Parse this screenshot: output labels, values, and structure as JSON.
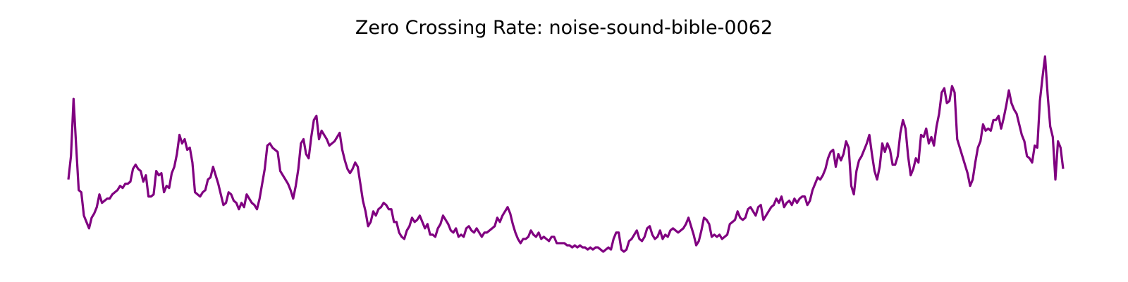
{
  "chart_data": {
    "type": "line",
    "title": "Zero Crossing Rate: noise-sound-bible-0062",
    "xlabel": "",
    "ylabel": "",
    "axes_visible": false,
    "grid": false,
    "line_color": "#800080",
    "series": [
      {
        "values": [
          0.3,
          0.41,
          0.68,
          0.46,
          0.25,
          0.24,
          0.13,
          0.1,
          0.07,
          0.12,
          0.14,
          0.17,
          0.23,
          0.19,
          0.2,
          0.21,
          0.21,
          0.23,
          0.24,
          0.25,
          0.27,
          0.26,
          0.28,
          0.28,
          0.29,
          0.35,
          0.37,
          0.35,
          0.34,
          0.29,
          0.32,
          0.22,
          0.22,
          0.23,
          0.34,
          0.32,
          0.33,
          0.24,
          0.27,
          0.26,
          0.33,
          0.36,
          0.42,
          0.51,
          0.47,
          0.49,
          0.44,
          0.45,
          0.38,
          0.24,
          0.23,
          0.22,
          0.24,
          0.25,
          0.3,
          0.31,
          0.36,
          0.32,
          0.28,
          0.23,
          0.18,
          0.19,
          0.24,
          0.23,
          0.2,
          0.19,
          0.16,
          0.19,
          0.17,
          0.23,
          0.21,
          0.19,
          0.18,
          0.16,
          0.21,
          0.28,
          0.35,
          0.46,
          0.47,
          0.45,
          0.44,
          0.43,
          0.34,
          0.32,
          0.3,
          0.28,
          0.25,
          0.21,
          0.27,
          0.35,
          0.47,
          0.49,
          0.42,
          0.4,
          0.5,
          0.58,
          0.6,
          0.49,
          0.53,
          0.51,
          0.49,
          0.46,
          0.47,
          0.48,
          0.5,
          0.52,
          0.44,
          0.39,
          0.35,
          0.33,
          0.35,
          0.38,
          0.36,
          0.28,
          0.2,
          0.15,
          0.08,
          0.1,
          0.15,
          0.13,
          0.16,
          0.17,
          0.19,
          0.18,
          0.16,
          0.16,
          0.1,
          0.1,
          0.05,
          0.03,
          0.02,
          0.06,
          0.08,
          0.12,
          0.1,
          0.11,
          0.13,
          0.1,
          0.07,
          0.09,
          0.04,
          0.04,
          0.03,
          0.07,
          0.09,
          0.13,
          0.11,
          0.09,
          0.06,
          0.05,
          0.07,
          0.03,
          0.04,
          0.03,
          0.07,
          0.08,
          0.06,
          0.05,
          0.07,
          0.05,
          0.03,
          0.05,
          0.05,
          0.06,
          0.07,
          0.08,
          0.12,
          0.1,
          0.13,
          0.15,
          0.17,
          0.14,
          0.09,
          0.05,
          0.02,
          0.0,
          0.02,
          0.02,
          0.03,
          0.06,
          0.04,
          0.03,
          0.05,
          0.02,
          0.03,
          0.02,
          0.01,
          0.03,
          0.03,
          0.0,
          0.0,
          0.0,
          0.0,
          -0.01,
          -0.01,
          -0.02,
          -0.01,
          -0.02,
          -0.01,
          -0.02,
          -0.02,
          -0.03,
          -0.02,
          -0.03,
          -0.02,
          -0.02,
          -0.03,
          -0.04,
          -0.03,
          -0.02,
          -0.03,
          0.02,
          0.05,
          0.05,
          -0.03,
          -0.04,
          -0.03,
          0.01,
          0.02,
          0.04,
          0.06,
          0.02,
          0.01,
          0.03,
          0.07,
          0.08,
          0.04,
          0.02,
          0.03,
          0.06,
          0.02,
          0.04,
          0.03,
          0.06,
          0.07,
          0.06,
          0.05,
          0.06,
          0.07,
          0.09,
          0.12,
          0.08,
          0.04,
          -0.01,
          0.01,
          0.06,
          0.12,
          0.11,
          0.09,
          0.03,
          0.04,
          0.03,
          0.04,
          0.02,
          0.03,
          0.04,
          0.09,
          0.1,
          0.11,
          0.15,
          0.12,
          0.11,
          0.12,
          0.16,
          0.17,
          0.15,
          0.13,
          0.17,
          0.18,
          0.11,
          0.13,
          0.15,
          0.17,
          0.18,
          0.21,
          0.19,
          0.22,
          0.17,
          0.19,
          0.2,
          0.18,
          0.21,
          0.19,
          0.21,
          0.22,
          0.22,
          0.18,
          0.2,
          0.25,
          0.28,
          0.31,
          0.3,
          0.32,
          0.35,
          0.4,
          0.43,
          0.44,
          0.36,
          0.42,
          0.39,
          0.42,
          0.48,
          0.45,
          0.27,
          0.23,
          0.34,
          0.39,
          0.41,
          0.44,
          0.47,
          0.51,
          0.42,
          0.34,
          0.3,
          0.36,
          0.47,
          0.43,
          0.47,
          0.44,
          0.37,
          0.37,
          0.41,
          0.52,
          0.58,
          0.54,
          0.41,
          0.32,
          0.35,
          0.4,
          0.38,
          0.51,
          0.5,
          0.54,
          0.47,
          0.5,
          0.46,
          0.55,
          0.61,
          0.71,
          0.73,
          0.66,
          0.67,
          0.74,
          0.71,
          0.49,
          0.45,
          0.41,
          0.37,
          0.33,
          0.27,
          0.3,
          0.38,
          0.45,
          0.48,
          0.56,
          0.53,
          0.54,
          0.53,
          0.58,
          0.58,
          0.6,
          0.54,
          0.59,
          0.65,
          0.72,
          0.66,
          0.63,
          0.61,
          0.56,
          0.51,
          0.48,
          0.41,
          0.4,
          0.38,
          0.46,
          0.45,
          0.67,
          0.78,
          0.88,
          0.7,
          0.55,
          0.5,
          0.3,
          0.48,
          0.45,
          0.35
        ]
      }
    ]
  }
}
